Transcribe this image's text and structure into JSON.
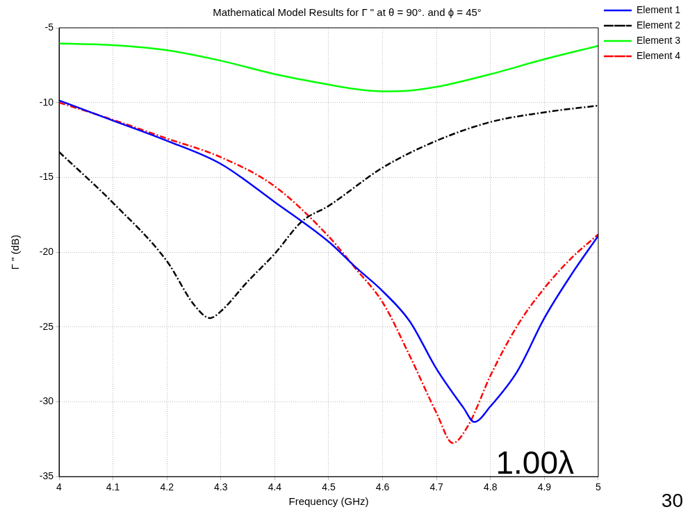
{
  "chart_data": {
    "type": "line",
    "title": "Mathematical Model Results for Γ \" at θ = 90°. and ϕ = 45°",
    "xlabel": "Frequency (GHz)",
    "ylabel": "Γ \" (dB)",
    "xlim": [
      4,
      5
    ],
    "xticks": [
      4,
      4.1,
      4.2,
      4.3,
      4.4,
      4.5,
      4.6,
      4.7,
      4.8,
      4.9,
      5
    ],
    "ylim": [
      -35,
      -5
    ],
    "yticks": [
      -35,
      -30,
      -25,
      -20,
      -15,
      -10,
      -5
    ],
    "grid": true,
    "legend": "top right",
    "marker": "none",
    "annotations": [
      "1.00λ",
      "30"
    ],
    "series": [
      {
        "name": "Element 1",
        "color": "#0000ff",
        "line_style": "solid",
        "x": [
          4.0,
          4.1,
          4.2,
          4.3,
          4.4,
          4.5,
          4.55,
          4.6,
          4.65,
          4.7,
          4.75,
          4.77,
          4.8,
          4.85,
          4.9,
          4.95,
          5.0
        ],
        "values": [
          -9.86,
          -11.2,
          -12.55,
          -14.1,
          -16.65,
          -19.3,
          -21.0,
          -22.6,
          -24.6,
          -27.8,
          -30.4,
          -31.35,
          -30.3,
          -27.95,
          -24.4,
          -21.5,
          -18.9
        ]
      },
      {
        "name": "Element 2",
        "color": "#000000",
        "line_style": "dashed",
        "x": [
          4.0,
          4.1,
          4.2,
          4.25,
          4.28,
          4.3,
          4.35,
          4.4,
          4.45,
          4.5,
          4.6,
          4.7,
          4.8,
          4.9,
          5.0
        ],
        "values": [
          -13.3,
          -16.7,
          -20.6,
          -23.5,
          -24.4,
          -23.95,
          -21.95,
          -20.1,
          -17.95,
          -16.9,
          -14.35,
          -12.55,
          -11.3,
          -10.65,
          -10.2
        ]
      },
      {
        "name": "Element 3",
        "color": "#00ff00",
        "line_style": "solid",
        "x": [
          4.0,
          4.1,
          4.2,
          4.3,
          4.4,
          4.5,
          4.55,
          4.6,
          4.65,
          4.7,
          4.8,
          4.9,
          5.0
        ],
        "values": [
          -6.05,
          -6.16,
          -6.5,
          -7.2,
          -8.1,
          -8.8,
          -9.1,
          -9.25,
          -9.2,
          -8.95,
          -8.1,
          -7.1,
          -6.2
        ]
      },
      {
        "name": "Element 4",
        "color": "#ff0000",
        "line_style": "dashed",
        "x": [
          4.0,
          4.1,
          4.2,
          4.3,
          4.4,
          4.5,
          4.55,
          4.6,
          4.65,
          4.7,
          4.73,
          4.76,
          4.8,
          4.85,
          4.9,
          4.95,
          5.0
        ],
        "values": [
          -10.0,
          -11.15,
          -12.4,
          -13.65,
          -15.6,
          -18.95,
          -21.1,
          -23.35,
          -26.9,
          -30.75,
          -32.75,
          -31.5,
          -28.25,
          -24.9,
          -22.4,
          -20.4,
          -18.8
        ]
      }
    ]
  }
}
